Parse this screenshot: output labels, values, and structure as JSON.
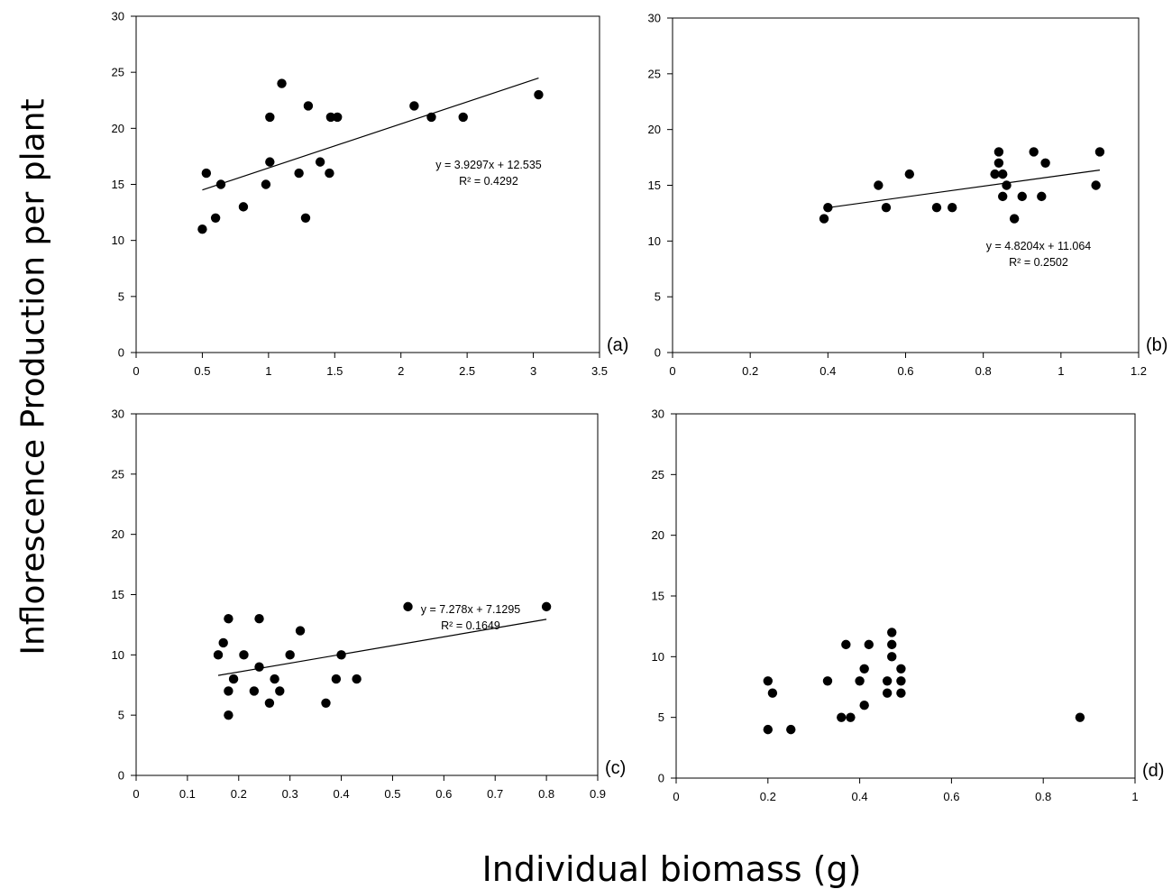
{
  "figure": {
    "ylabel": "Inflorescence Production per plant",
    "xlabel": "Individual biomass (g)"
  },
  "chart_data": [
    {
      "type": "scatter",
      "panel_label": "(a)",
      "xlim": [
        0,
        3.5
      ],
      "ylim": [
        0,
        30
      ],
      "xticks": [
        "0",
        "0.5",
        "1",
        "1.5",
        "2",
        "2.5",
        "3",
        "3.5"
      ],
      "yticks": [
        "0",
        "5",
        "10",
        "15",
        "20",
        "25",
        "30"
      ],
      "points": [
        [
          0.5,
          11
        ],
        [
          0.53,
          16
        ],
        [
          0.6,
          12
        ],
        [
          0.64,
          15
        ],
        [
          0.81,
          13
        ],
        [
          0.98,
          15
        ],
        [
          1.01,
          21
        ],
        [
          1.01,
          17
        ],
        [
          1.1,
          24
        ],
        [
          1.23,
          16
        ],
        [
          1.28,
          12
        ],
        [
          1.3,
          22
        ],
        [
          1.39,
          17
        ],
        [
          1.46,
          16
        ],
        [
          1.47,
          21
        ],
        [
          1.52,
          21
        ],
        [
          2.1,
          22
        ],
        [
          2.23,
          21
        ],
        [
          2.47,
          21
        ],
        [
          3.04,
          23
        ]
      ],
      "trendline": {
        "slope": 3.9297,
        "intercept": 12.535,
        "x_range": [
          0.5,
          3.04
        ]
      },
      "annotation": [
        "y = 3.9297x + 12.535",
        "R² = 0.4292"
      ],
      "grid": false
    },
    {
      "type": "scatter",
      "panel_label": "(b)",
      "xlim": [
        0,
        1.2
      ],
      "ylim": [
        0,
        30
      ],
      "xticks": [
        "0",
        "0.2",
        "0.4",
        "0.6",
        "0.8",
        "1",
        "1.2"
      ],
      "yticks": [
        "0",
        "5",
        "10",
        "15",
        "20",
        "25",
        "30"
      ],
      "points": [
        [
          0.39,
          12
        ],
        [
          0.4,
          13
        ],
        [
          0.53,
          15
        ],
        [
          0.55,
          13
        ],
        [
          0.61,
          16
        ],
        [
          0.68,
          13
        ],
        [
          0.72,
          13
        ],
        [
          0.83,
          16
        ],
        [
          0.84,
          18
        ],
        [
          0.84,
          17
        ],
        [
          0.85,
          16
        ],
        [
          0.85,
          14
        ],
        [
          0.86,
          15
        ],
        [
          0.88,
          12
        ],
        [
          0.9,
          14
        ],
        [
          0.93,
          18
        ],
        [
          0.96,
          17
        ],
        [
          0.95,
          14
        ],
        [
          1.09,
          15
        ],
        [
          1.1,
          18
        ]
      ],
      "trendline": {
        "slope": 4.8204,
        "intercept": 11.064,
        "x_range": [
          0.39,
          1.1
        ]
      },
      "annotation": [
        "y = 4.8204x + 11.064",
        "R² = 0.2502"
      ],
      "grid": false
    },
    {
      "type": "scatter",
      "panel_label": "(c)",
      "xlim": [
        0,
        0.9
      ],
      "ylim": [
        0,
        30
      ],
      "xticks": [
        "0",
        "0.1",
        "0.2",
        "0.3",
        "0.4",
        "0.5",
        "0.6",
        "0.7",
        "0.8",
        "0.9"
      ],
      "yticks": [
        "0",
        "5",
        "10",
        "15",
        "20",
        "25",
        "30"
      ],
      "points": [
        [
          0.16,
          10
        ],
        [
          0.17,
          11
        ],
        [
          0.18,
          13
        ],
        [
          0.18,
          7
        ],
        [
          0.18,
          5
        ],
        [
          0.19,
          8
        ],
        [
          0.21,
          10
        ],
        [
          0.23,
          7
        ],
        [
          0.24,
          13
        ],
        [
          0.24,
          9
        ],
        [
          0.26,
          6
        ],
        [
          0.27,
          8
        ],
        [
          0.28,
          7
        ],
        [
          0.3,
          10
        ],
        [
          0.32,
          12
        ],
        [
          0.37,
          6
        ],
        [
          0.39,
          8
        ],
        [
          0.4,
          10
        ],
        [
          0.43,
          8
        ],
        [
          0.53,
          14
        ],
        [
          0.8,
          14
        ]
      ],
      "trendline": {
        "slope": 7.278,
        "intercept": 7.1295,
        "x_range": [
          0.16,
          0.8
        ]
      },
      "annotation": [
        "y = 7.278x + 7.1295",
        "R² = 0.1649"
      ],
      "grid": false
    },
    {
      "type": "scatter",
      "panel_label": "(d)",
      "xlim": [
        0,
        1
      ],
      "ylim": [
        0,
        30
      ],
      "xticks": [
        "0",
        "0.2",
        "0.4",
        "0.6",
        "0.8",
        "1"
      ],
      "yticks": [
        "0",
        "5",
        "10",
        "15",
        "20",
        "25",
        "30"
      ],
      "points": [
        [
          0.2,
          4
        ],
        [
          0.2,
          8
        ],
        [
          0.21,
          7
        ],
        [
          0.25,
          4
        ],
        [
          0.33,
          8
        ],
        [
          0.36,
          5
        ],
        [
          0.37,
          11
        ],
        [
          0.38,
          5
        ],
        [
          0.4,
          8
        ],
        [
          0.41,
          9
        ],
        [
          0.41,
          6
        ],
        [
          0.42,
          11
        ],
        [
          0.46,
          7
        ],
        [
          0.46,
          8
        ],
        [
          0.47,
          10
        ],
        [
          0.47,
          12
        ],
        [
          0.47,
          11
        ],
        [
          0.49,
          9
        ],
        [
          0.49,
          8
        ],
        [
          0.49,
          7
        ],
        [
          0.88,
          5
        ]
      ],
      "grid": false
    }
  ]
}
